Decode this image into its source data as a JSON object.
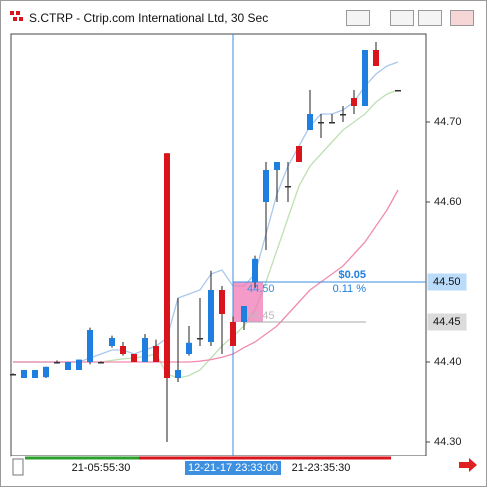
{
  "window_title": "S.CTRP - Ctrip.com International Ltd, 30 Sec",
  "chart_data": {
    "type": "candlestick",
    "categories": [
      null,
      null,
      null,
      null,
      null,
      null,
      null,
      null,
      "21-05:55:30",
      null,
      null,
      null,
      null,
      null,
      null,
      null,
      null,
      null,
      null,
      null,
      "12-21-17 23:33:00",
      null,
      null,
      null,
      null,
      null,
      null,
      null,
      "21-23:35:30",
      null,
      null,
      null,
      null,
      null,
      null,
      null
    ],
    "open": [
      44.385,
      44.38,
      44.38,
      44.381,
      44.4,
      44.39,
      44.39,
      44.4,
      44.4,
      44.42,
      44.42,
      44.41,
      44.4,
      44.42,
      44.661,
      44.38,
      44.41,
      44.43,
      44.425,
      44.49,
      44.45,
      44.45,
      44.5,
      44.6,
      44.64,
      44.62,
      44.67,
      44.69,
      44.7,
      44.7,
      44.71,
      44.73,
      44.72,
      44.79,
      null,
      44.74
    ],
    "high": [
      44.386,
      44.39,
      44.39,
      44.394,
      44.402,
      44.4,
      44.403,
      44.443,
      44.401,
      44.433,
      44.425,
      44.41,
      44.435,
      44.428,
      44.661,
      44.48,
      44.445,
      44.48,
      44.514,
      44.495,
      44.457,
      44.47,
      44.533,
      44.65,
      44.65,
      44.65,
      44.67,
      44.74,
      44.71,
      44.71,
      44.72,
      44.74,
      44.79,
      44.8,
      null,
      44.74
    ],
    "low": [
      44.384,
      44.38,
      44.38,
      44.38,
      44.398,
      44.39,
      44.39,
      44.397,
      44.399,
      44.418,
      44.408,
      44.4,
      44.4,
      44.4,
      44.3,
      44.375,
      44.408,
      44.42,
      44.42,
      44.41,
      44.42,
      44.44,
      44.493,
      44.54,
      44.6,
      44.6,
      44.65,
      44.69,
      44.68,
      44.7,
      44.7,
      44.71,
      44.72,
      44.77,
      null,
      44.74
    ],
    "close": [
      44.385,
      44.39,
      44.39,
      44.394,
      44.4,
      44.4,
      44.403,
      44.44,
      44.4,
      44.43,
      44.41,
      44.4,
      44.43,
      44.4,
      44.38,
      44.39,
      44.424,
      44.43,
      44.49,
      44.46,
      44.42,
      44.47,
      44.529,
      44.64,
      44.65,
      44.62,
      44.65,
      44.71,
      44.7,
      44.7,
      44.71,
      44.72,
      44.79,
      44.77,
      null,
      44.74
    ],
    "up_color": "#1f7fe0",
    "down_color": "#d8141c",
    "flat_color": "#333333",
    "lines": [
      {
        "color": "#a9c8ec",
        "values": [
          44.4,
          44.4,
          44.4,
          44.4,
          44.4,
          44.4,
          44.4,
          44.405,
          44.41,
          44.415,
          44.415,
          44.41,
          44.415,
          44.42,
          44.43,
          44.48,
          44.485,
          44.49,
          44.51,
          44.515,
          44.495,
          44.495,
          44.51,
          44.56,
          44.61,
          44.645,
          44.67,
          44.695,
          44.71,
          44.71,
          44.715,
          44.725,
          44.745,
          44.76,
          44.77,
          44.775
        ]
      },
      {
        "color": "#bfe0b4",
        "values": [
          44.4,
          44.4,
          44.4,
          44.4,
          44.4,
          44.4,
          44.4,
          44.4,
          44.4,
          44.402,
          44.404,
          44.405,
          44.407,
          44.41,
          44.385,
          44.38,
          44.383,
          44.39,
          44.405,
          44.42,
          44.432,
          44.445,
          44.465,
          44.5,
          44.54,
          44.58,
          44.62,
          44.645,
          44.66,
          44.675,
          44.69,
          44.7,
          44.71,
          44.725,
          44.735,
          44.74
        ]
      },
      {
        "color": "#f08cb0",
        "values": [
          44.4,
          44.4,
          44.4,
          44.4,
          44.4,
          44.4,
          44.4,
          44.4,
          44.4,
          44.4,
          44.4,
          44.4,
          44.4,
          44.4,
          44.4,
          44.4,
          44.4,
          44.401,
          44.403,
          44.406,
          44.41,
          44.418,
          44.425,
          44.435,
          44.445,
          44.46,
          44.475,
          44.49,
          44.5,
          44.51,
          44.52,
          44.535,
          44.55,
          44.57,
          44.59,
          44.615
        ]
      }
    ],
    "ylim": [
      44.2825,
      44.81
    ],
    "yticks": [
      {
        "value": 44.3,
        "label": "44.30"
      },
      {
        "value": 44.4,
        "label": "44.40"
      },
      {
        "value": 44.6,
        "label": "44.60"
      },
      {
        "value": 44.7,
        "label": "44.70"
      }
    ],
    "crosshair_index": 20,
    "price_markers": [
      {
        "value": 44.5,
        "label": "44.50",
        "color": "#3d9bf0"
      },
      {
        "value": 44.45,
        "label": "44.45",
        "color": "#9a9a9a"
      }
    ],
    "measure": {
      "start": {
        "value": 44.45,
        "label": "44.45"
      },
      "end": {
        "value": 44.5,
        "label": "44.50"
      },
      "change": "$0.05",
      "percent": "0.11 %"
    }
  }
}
